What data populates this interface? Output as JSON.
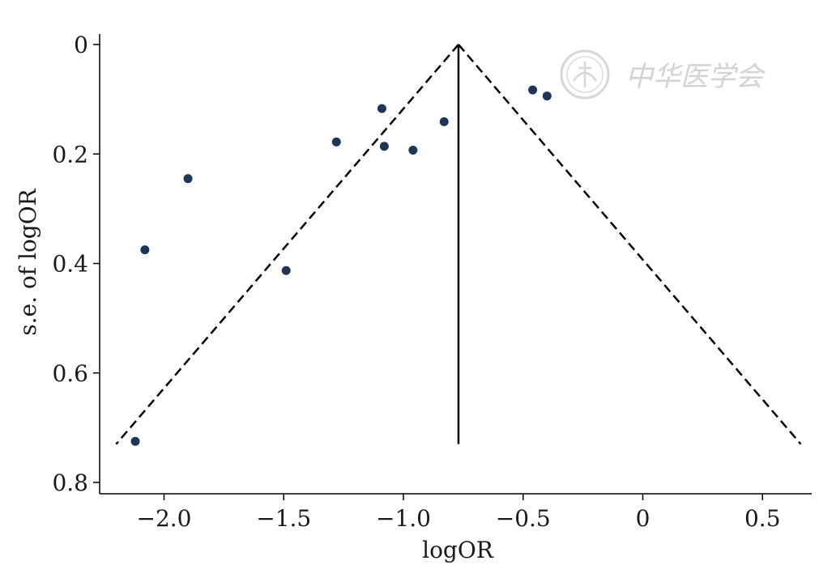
{
  "chart_data": {
    "type": "scatter",
    "title": "",
    "xlabel": "logOR",
    "ylabel": "s.e. of logOR",
    "xlim": [
      -2.25,
      0.7
    ],
    "ylim": [
      0,
      0.82
    ],
    "y_inverted": true,
    "grid": false,
    "x_ticks": [
      -2.0,
      -1.5,
      -1.0,
      -0.5,
      0,
      0.5
    ],
    "x_tick_labels": [
      "−2.0",
      "−1.5",
      "−1.0",
      "−0.5",
      "0",
      "0.5"
    ],
    "y_ticks": [
      0,
      0.2,
      0.4,
      0.6,
      0.8
    ],
    "y_tick_labels": [
      "0",
      "0.2",
      "0.4",
      "0.6",
      "0.8"
    ],
    "points": [
      {
        "x": -2.12,
        "y": 0.725
      },
      {
        "x": -2.08,
        "y": 0.375
      },
      {
        "x": -1.9,
        "y": 0.245
      },
      {
        "x": -1.49,
        "y": 0.413
      },
      {
        "x": -1.28,
        "y": 0.178
      },
      {
        "x": -1.09,
        "y": 0.117
      },
      {
        "x": -1.08,
        "y": 0.186
      },
      {
        "x": -0.96,
        "y": 0.193
      },
      {
        "x": -0.83,
        "y": 0.141
      },
      {
        "x": -0.46,
        "y": 0.083
      },
      {
        "x": -0.4,
        "y": 0.094
      }
    ],
    "pooled_estimate": -0.77,
    "pooled_line_max_se": 0.73,
    "funnel_left": {
      "x": -2.2,
      "y": 0.73
    },
    "funnel_right": {
      "x": 0.66,
      "y": 0.73
    },
    "point_color": "#1d3557",
    "line_color": "#000000"
  },
  "watermark": {
    "text": "中华医学会",
    "color": "#d3d3d3"
  }
}
